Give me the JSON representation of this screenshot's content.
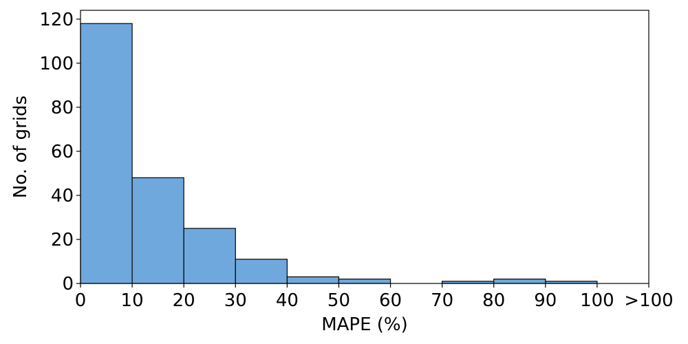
{
  "chart_data": {
    "type": "bar",
    "title": "",
    "xlabel": "MAPE (%)",
    "ylabel": "No. of grids",
    "bin_edges": [
      0,
      10,
      20,
      30,
      40,
      50,
      60,
      70,
      80,
      90,
      100,
      110
    ],
    "x_tick_labels": [
      "0",
      "10",
      "20",
      "30",
      "40",
      "50",
      "60",
      "70",
      "80",
      "90",
      "100",
      ">100"
    ],
    "values": [
      118,
      48,
      25,
      11,
      3,
      2,
      0,
      1,
      2,
      1,
      0
    ],
    "xlim": [
      0,
      110
    ],
    "ylim": [
      0,
      124
    ],
    "y_ticks": [
      0,
      20,
      40,
      60,
      80,
      100,
      120
    ],
    "grid": false,
    "bar_color": "#6fa8dc",
    "edge_color": "#000000"
  }
}
